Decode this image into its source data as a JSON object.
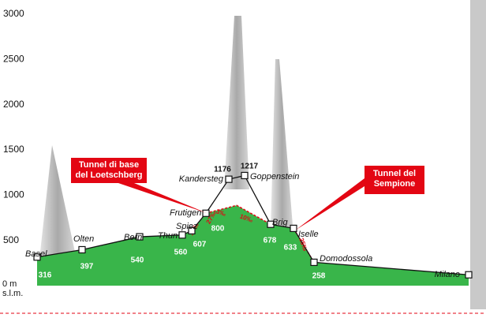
{
  "chart_data": {
    "type": "profile",
    "categories": [
      "Basel",
      "Olten",
      "Bern",
      "Thun",
      "Spiez",
      "Frutigen",
      "Kandersteg",
      "Goppenstein",
      "Brig",
      "Iselle",
      "Domodossola",
      "Milano"
    ],
    "values": [
      316,
      397,
      540,
      560,
      607,
      800,
      1176,
      1217,
      678,
      633,
      258,
      120
    ],
    "color": "#39b54a",
    "ylim": [
      0,
      3000
    ],
    "yticks": [
      {
        "value": 0,
        "label": "0 m s.l.m."
      },
      500,
      1000,
      1500,
      2000,
      2500,
      3000
    ],
    "annotations": [
      "Tunnel di base del Loetschberg",
      "Tunnel del Sempione"
    ],
    "gradients": [
      "15‰",
      "27‰",
      "3‰",
      "10‰",
      "25‰"
    ]
  }
}
